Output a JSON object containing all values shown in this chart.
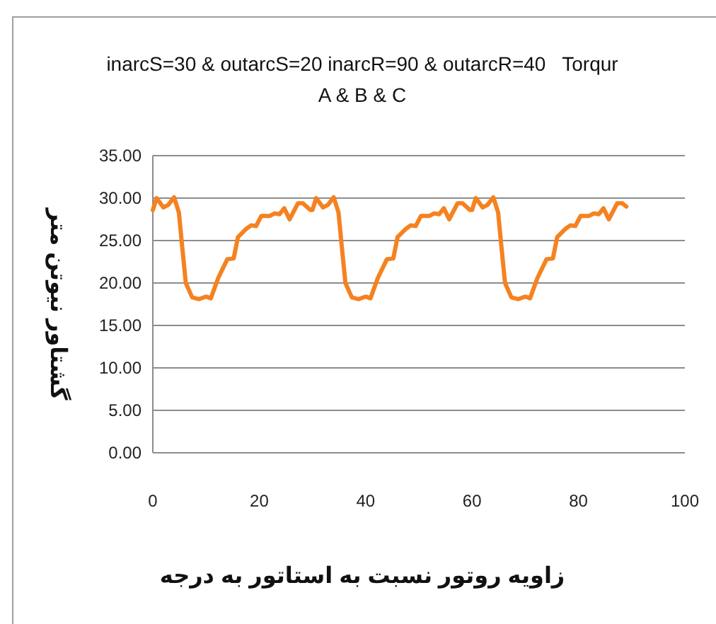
{
  "chart_data": {
    "type": "line",
    "title": "inarcS=30 & outarcS=20 inarcR=90 & outarcR=40   Torqur",
    "subtitle": "A & B & C",
    "xlabel": "زاویه روتور نسبت به استاتور به درجه",
    "ylabel": "گشتاور نیوتن متر",
    "x": [
      0,
      0.7,
      2,
      2.9,
      4,
      4.9,
      5.5,
      6.2,
      7.4,
      8.7,
      10,
      10.9,
      12.3,
      14,
      15.2,
      16,
      17.6,
      18.5,
      19.4,
      20.4,
      22,
      22.9,
      23.8,
      24.7,
      25.7,
      27.3,
      28.2,
      29.6,
      30,
      30.7,
      32,
      32.9,
      34,
      34.9,
      35.5,
      36.2,
      37.4,
      38.7,
      40,
      40.9,
      42.3,
      44,
      45.2,
      46,
      47.6,
      48.5,
      49.4,
      50.4,
      52,
      52.9,
      53.8,
      54.7,
      55.7,
      57.3,
      58.2,
      59.6,
      60,
      60.7,
      62,
      62.9,
      64,
      64.9,
      65.5,
      66.2,
      67.4,
      68.7,
      70,
      70.9,
      72.3,
      74,
      75.2,
      76,
      77.6,
      78.5,
      79.4,
      80.4,
      82,
      82.9,
      83.8,
      84.7,
      85.7,
      87.3,
      88.2,
      89
    ],
    "series": [
      {
        "color": "#f58220",
        "values": [
          28.6,
          30,
          28.9,
          29.2,
          30.1,
          28.3,
          24.4,
          20,
          18.3,
          18.1,
          18.4,
          18.2,
          20.6,
          22.8,
          22.9,
          25.4,
          26.4,
          26.8,
          26.7,
          27.9,
          27.9,
          28.2,
          28.1,
          28.8,
          27.5,
          29.4,
          29.4,
          28.6,
          28.6,
          30,
          28.9,
          29.2,
          30.1,
          28.3,
          24.4,
          20,
          18.3,
          18.1,
          18.4,
          18.2,
          20.6,
          22.8,
          22.9,
          25.4,
          26.4,
          26.8,
          26.7,
          27.9,
          27.9,
          28.2,
          28.1,
          28.8,
          27.5,
          29.4,
          29.4,
          28.6,
          28.6,
          30,
          28.9,
          29.2,
          30.1,
          28.3,
          24.4,
          20,
          18.3,
          18.1,
          18.4,
          18.2,
          20.6,
          22.8,
          22.9,
          25.4,
          26.4,
          26.8,
          26.7,
          27.9,
          27.9,
          28.2,
          28.1,
          28.8,
          27.5,
          29.4,
          29.4,
          29.0
        ]
      }
    ],
    "xlim": [
      0,
      100
    ],
    "xticks": [
      0,
      20,
      40,
      60,
      80,
      100
    ],
    "ylim": [
      0,
      35
    ],
    "yticks": [
      {
        "value": 0,
        "label": "0.00"
      },
      {
        "value": 5,
        "label": "5.00"
      },
      {
        "value": 10,
        "label": "10.00"
      },
      {
        "value": 15,
        "label": "15.00"
      },
      {
        "value": 20,
        "label": "20.00"
      },
      {
        "value": 25,
        "label": "25.00"
      },
      {
        "value": 30,
        "label": "30.00"
      },
      {
        "value": 35,
        "label": "35.00"
      }
    ],
    "grid": "y",
    "marker": "none",
    "line_style": "solid"
  }
}
